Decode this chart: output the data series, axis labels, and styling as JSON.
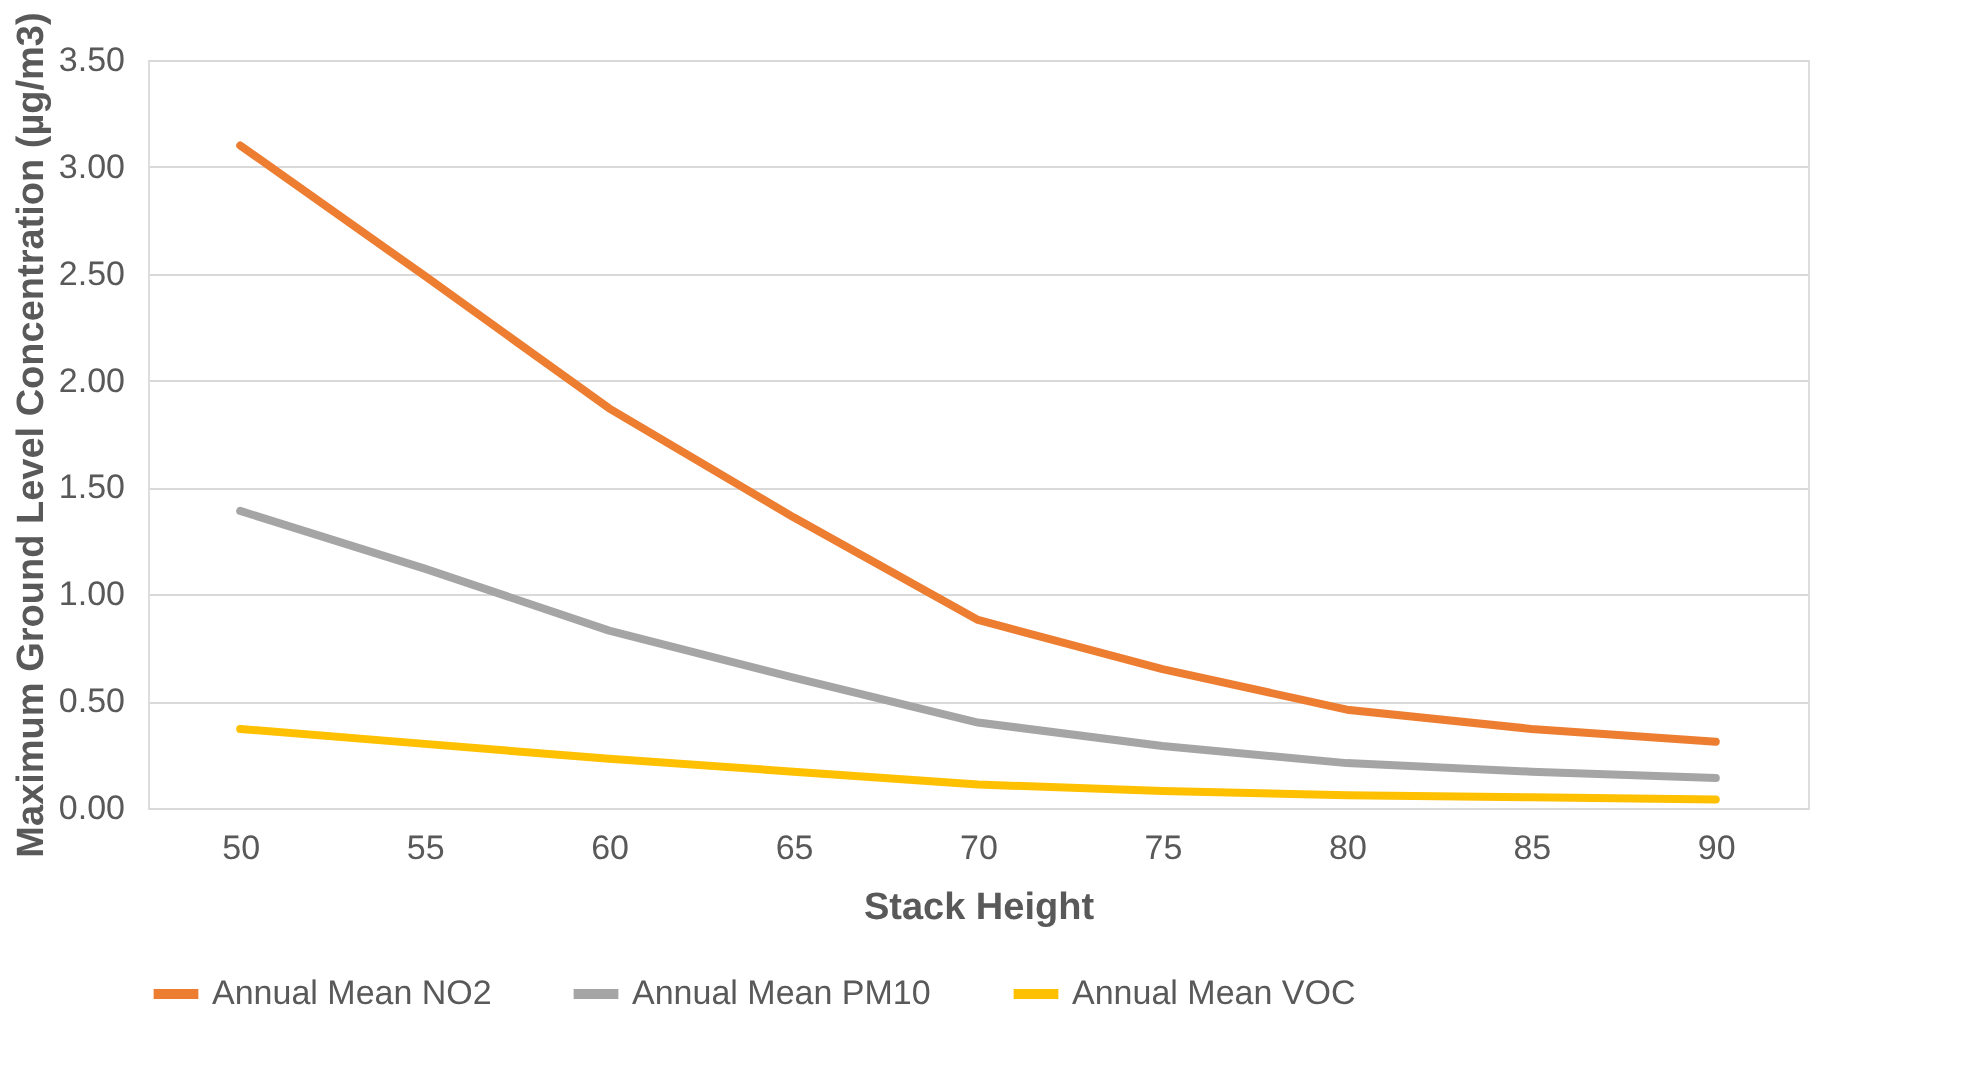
{
  "chart_data": {
    "type": "line",
    "xlabel": "Stack Height",
    "ylabel": "Maximum Ground Level Concentration (µg/m3)",
    "categories": [
      "50",
      "55",
      "60",
      "65",
      "70",
      "75",
      "80",
      "85",
      "90"
    ],
    "series": [
      {
        "name": "Annual Mean NO2",
        "color": "#ed7d31",
        "values": [
          3.1,
          2.49,
          1.87,
          1.36,
          0.88,
          0.65,
          0.46,
          0.37,
          0.31
        ]
      },
      {
        "name": "Annual Mean PM10",
        "color": "#a5a5a5",
        "values": [
          1.39,
          1.12,
          0.83,
          0.61,
          0.4,
          0.29,
          0.21,
          0.17,
          0.14
        ]
      },
      {
        "name": "Annual Mean VOC",
        "color": "#ffc000",
        "values": [
          0.37,
          0.3,
          0.23,
          0.17,
          0.11,
          0.08,
          0.06,
          0.05,
          0.04
        ]
      }
    ],
    "ylim": [
      0,
      3.5
    ],
    "yticks": [
      {
        "value": 0,
        "label": "0.00"
      },
      {
        "value": 0.5,
        "label": "0.50"
      },
      {
        "value": 1,
        "label": "1.00"
      },
      {
        "value": 1.5,
        "label": "1.50"
      },
      {
        "value": 2,
        "label": "2.00"
      },
      {
        "value": 2.5,
        "label": "2.50"
      },
      {
        "value": 3,
        "label": "3.00"
      },
      {
        "value": 3.5,
        "label": "3.50"
      }
    ],
    "grid": "y",
    "legend": "bottom",
    "marker": "none",
    "line_style": "solid"
  }
}
